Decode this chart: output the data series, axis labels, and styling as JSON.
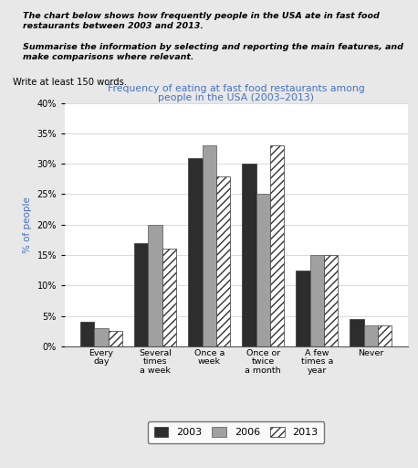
{
  "title_line1": "Frequency of eating at fast food restaurants among",
  "title_line2": "people in the USA (2003–2013)",
  "title_color": "#4472c4",
  "ylabel": "% of people",
  "ylabel_color": "#4472c4",
  "categories": [
    "Every\nday",
    "Several\ntimes\na week",
    "Once a\nweek",
    "Once or\ntwice\na month",
    "A few\ntimes a\nyear",
    "Never"
  ],
  "data_2003": [
    4,
    17,
    31,
    30,
    12.5,
    4.5
  ],
  "data_2006": [
    3,
    20,
    33,
    25,
    15,
    3.5
  ],
  "data_2013": [
    2.5,
    16,
    28,
    33,
    15,
    3.5
  ],
  "color_2003": "#2d2d2d",
  "color_2006": "#a0a0a0",
  "ylim": [
    0,
    40
  ],
  "yticks": [
    0,
    5,
    10,
    15,
    20,
    25,
    30,
    35,
    40
  ],
  "yticklabels": [
    "0%",
    "5%",
    "10%",
    "15%",
    "20%",
    "25%",
    "30%",
    "35%",
    "40%"
  ],
  "prompt_line1": "The chart below shows how frequently people in the USA ate in fast food",
  "prompt_line2": "restaurants between 2003 and 2013.",
  "task_line1": "Summarise the information by selecting and reporting the main features, and",
  "task_line2": "make comparisons where relevant.",
  "write_text": "Write at least 150 words.",
  "background_color": "#e8e8e8"
}
